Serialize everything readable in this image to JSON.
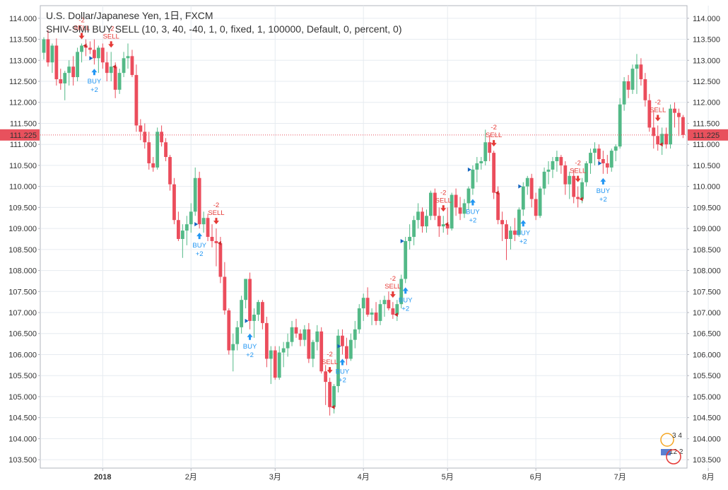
{
  "header": {
    "title": "U.S. Dollar/Japanese Yen, 1日, FXCM",
    "indicator": "SHIV-SMI BUY SELL (10, 3, 40, -40, 1, 0, fixed, 1, 100000, Default, 0, percent, 0)"
  },
  "price_marker": {
    "label": "111.225",
    "color": "#e8515d"
  },
  "colors": {
    "up": "#53b987",
    "down": "#eb4d5c",
    "buy": "#2196f3",
    "sell": "#e53935",
    "grid": "#e6ebf0"
  },
  "widget": {
    "icon": "chart-sharing-widget-icon",
    "label_top": "3 4",
    "label_bottom": "12 2"
  },
  "chart_data": {
    "type": "candlestick",
    "title": "U.S. Dollar/Japanese Yen, 1日, FXCM",
    "ylim": [
      103.3,
      114.3
    ],
    "y_ticks": [
      "114.000",
      "113.500",
      "113.000",
      "112.500",
      "112.000",
      "111.500",
      "111.000",
      "110.500",
      "110.000",
      "109.500",
      "109.000",
      "108.500",
      "108.000",
      "107.500",
      "107.000",
      "106.500",
      "106.000",
      "105.500",
      "105.000",
      "104.500",
      "104.000",
      "103.500"
    ],
    "x_ticks": [
      {
        "i": 14,
        "label": "2018"
      },
      {
        "i": 35,
        "label": "2月"
      },
      {
        "i": 55,
        "label": "3月"
      },
      {
        "i": 76,
        "label": "4月"
      },
      {
        "i": 96,
        "label": "5月"
      },
      {
        "i": 117,
        "label": "6月"
      },
      {
        "i": 137,
        "label": "7月"
      },
      {
        "i": 158,
        "label": "8月"
      }
    ],
    "grid": true,
    "last_price": 111.225,
    "candles": [
      [
        113.18,
        113.55,
        113.02,
        113.5
      ],
      [
        113.5,
        113.72,
        112.85,
        112.95
      ],
      [
        112.95,
        113.4,
        112.7,
        113.35
      ],
      [
        113.35,
        113.52,
        112.4,
        112.55
      ],
      [
        112.55,
        112.8,
        112.3,
        112.45
      ],
      [
        112.45,
        112.75,
        112.05,
        112.7
      ],
      [
        112.7,
        113.0,
        112.4,
        112.85
      ],
      [
        112.85,
        113.1,
        112.4,
        112.6
      ],
      [
        112.6,
        113.3,
        112.5,
        113.2
      ],
      [
        113.2,
        113.4,
        112.95,
        113.35
      ],
      [
        113.35,
        113.5,
        113.1,
        113.3
      ],
      [
        113.3,
        113.45,
        113.15,
        113.25
      ],
      [
        113.25,
        113.5,
        112.9,
        113.05
      ],
      [
        113.05,
        113.35,
        112.7,
        113.3
      ],
      [
        113.3,
        113.4,
        112.8,
        112.95
      ],
      [
        112.95,
        113.2,
        112.5,
        112.7
      ],
      [
        112.7,
        113.2,
        112.5,
        112.85
      ],
      [
        112.85,
        112.95,
        112.1,
        112.3
      ],
      [
        112.3,
        112.8,
        112.2,
        112.7
      ],
      [
        112.7,
        113.2,
        112.6,
        113.05
      ],
      [
        113.05,
        113.4,
        112.8,
        113.1
      ],
      [
        113.1,
        113.25,
        112.6,
        112.65
      ],
      [
        112.65,
        112.9,
        111.3,
        111.45
      ],
      [
        111.45,
        111.6,
        111.1,
        111.3
      ],
      [
        111.3,
        111.5,
        110.9,
        111.05
      ],
      [
        111.05,
        111.3,
        110.4,
        110.55
      ],
      [
        110.55,
        110.7,
        110.35,
        110.45
      ],
      [
        110.45,
        111.4,
        110.4,
        111.3
      ],
      [
        111.3,
        111.45,
        110.95,
        111.05
      ],
      [
        111.05,
        111.15,
        110.6,
        110.7
      ],
      [
        110.7,
        110.75,
        109.9,
        110.05
      ],
      [
        110.05,
        110.2,
        109.1,
        109.2
      ],
      [
        109.2,
        109.4,
        108.7,
        108.75
      ],
      [
        108.75,
        109.1,
        108.3,
        108.95
      ],
      [
        108.95,
        109.3,
        108.6,
        109.1
      ],
      [
        109.1,
        109.6,
        108.9,
        109.4
      ],
      [
        109.4,
        110.45,
        109.3,
        110.2
      ],
      [
        110.2,
        110.35,
        109.0,
        109.1
      ],
      [
        109.1,
        109.4,
        108.9,
        109.25
      ],
      [
        109.25,
        109.35,
        108.7,
        108.8
      ],
      [
        108.8,
        109.1,
        108.55,
        108.7
      ],
      [
        108.7,
        109.0,
        108.1,
        108.65
      ],
      [
        108.65,
        108.8,
        107.7,
        107.85
      ],
      [
        107.85,
        108.2,
        106.95,
        107.05
      ],
      [
        107.05,
        107.1,
        106.0,
        106.1
      ],
      [
        106.1,
        106.5,
        105.6,
        106.25
      ],
      [
        106.25,
        106.8,
        106.1,
        106.65
      ],
      [
        106.65,
        107.4,
        106.5,
        107.3
      ],
      [
        107.3,
        107.8,
        107.1,
        107.8
      ],
      [
        107.8,
        107.95,
        106.6,
        106.8
      ],
      [
        106.8,
        107.1,
        106.4,
        106.95
      ],
      [
        106.95,
        107.3,
        106.8,
        107.25
      ],
      [
        107.25,
        107.3,
        106.6,
        106.75
      ],
      [
        106.75,
        106.9,
        105.7,
        105.9
      ],
      [
        105.9,
        106.2,
        105.3,
        106.1
      ],
      [
        106.1,
        106.2,
        105.4,
        105.45
      ],
      [
        105.45,
        106.2,
        105.4,
        106.05
      ],
      [
        106.05,
        106.3,
        105.7,
        106.15
      ],
      [
        106.15,
        106.5,
        105.95,
        106.3
      ],
      [
        106.3,
        106.8,
        106.2,
        106.65
      ],
      [
        106.65,
        106.85,
        106.4,
        106.5
      ],
      [
        106.5,
        106.6,
        106.2,
        106.35
      ],
      [
        106.35,
        106.7,
        106.2,
        106.6
      ],
      [
        106.6,
        106.75,
        105.8,
        105.9
      ],
      [
        105.9,
        106.35,
        105.7,
        106.3
      ],
      [
        106.3,
        106.7,
        106.1,
        106.55
      ],
      [
        106.55,
        106.65,
        105.55,
        105.6
      ],
      [
        105.6,
        105.75,
        104.8,
        105.35
      ],
      [
        105.35,
        105.45,
        104.55,
        104.75
      ],
      [
        104.75,
        105.3,
        104.6,
        105.25
      ],
      [
        105.25,
        106.6,
        105.1,
        106.45
      ],
      [
        106.45,
        106.6,
        106.0,
        106.2
      ],
      [
        106.2,
        106.4,
        105.75,
        105.9
      ],
      [
        105.9,
        106.5,
        105.85,
        106.35
      ],
      [
        106.35,
        106.8,
        106.15,
        106.6
      ],
      [
        106.6,
        107.2,
        106.5,
        107.1
      ],
      [
        107.1,
        107.45,
        106.8,
        107.35
      ],
      [
        107.35,
        107.6,
        106.9,
        106.95
      ],
      [
        106.95,
        107.1,
        106.7,
        107.0
      ],
      [
        107.0,
        107.25,
        106.7,
        106.8
      ],
      [
        106.8,
        107.3,
        106.7,
        107.2
      ],
      [
        107.2,
        107.4,
        106.9,
        107.3
      ],
      [
        107.3,
        107.5,
        107.05,
        107.1
      ],
      [
        107.1,
        107.25,
        106.85,
        106.95
      ],
      [
        106.95,
        107.3,
        106.8,
        107.2
      ],
      [
        107.2,
        107.9,
        107.1,
        107.8
      ],
      [
        107.8,
        108.8,
        107.7,
        108.7
      ],
      [
        108.7,
        109.1,
        108.5,
        108.8
      ],
      [
        108.8,
        109.3,
        108.6,
        109.2
      ],
      [
        109.2,
        109.6,
        109.0,
        109.4
      ],
      [
        109.4,
        109.5,
        108.9,
        109.05
      ],
      [
        109.05,
        109.45,
        108.9,
        109.3
      ],
      [
        109.3,
        109.9,
        109.2,
        109.85
      ],
      [
        109.85,
        109.95,
        109.2,
        109.3
      ],
      [
        109.3,
        109.5,
        108.8,
        109.05
      ],
      [
        109.05,
        109.3,
        108.9,
        109.1
      ],
      [
        109.1,
        109.5,
        108.85,
        109.0
      ],
      [
        109.0,
        109.85,
        108.95,
        109.8
      ],
      [
        109.8,
        109.95,
        109.3,
        109.5
      ],
      [
        109.5,
        109.75,
        109.2,
        109.35
      ],
      [
        109.35,
        109.7,
        109.25,
        109.6
      ],
      [
        109.6,
        110.0,
        109.45,
        109.95
      ],
      [
        109.95,
        110.5,
        109.8,
        110.4
      ],
      [
        110.4,
        110.7,
        110.1,
        110.55
      ],
      [
        110.55,
        110.7,
        110.4,
        110.6
      ],
      [
        110.6,
        111.35,
        110.5,
        111.05
      ],
      [
        111.05,
        111.2,
        110.6,
        110.8
      ],
      [
        110.8,
        110.85,
        109.7,
        109.85
      ],
      [
        109.85,
        110.0,
        109.1,
        109.2
      ],
      [
        109.2,
        109.4,
        108.7,
        109.1
      ],
      [
        109.1,
        109.2,
        108.25,
        108.75
      ],
      [
        108.75,
        109.05,
        108.5,
        108.95
      ],
      [
        108.95,
        109.25,
        108.7,
        108.85
      ],
      [
        108.85,
        109.5,
        108.8,
        109.45
      ],
      [
        109.45,
        110.1,
        109.3,
        110.0
      ],
      [
        110.0,
        110.25,
        109.8,
        110.2
      ],
      [
        110.2,
        110.3,
        109.5,
        109.7
      ],
      [
        109.7,
        109.85,
        109.2,
        109.3
      ],
      [
        109.3,
        110.0,
        109.25,
        109.95
      ],
      [
        109.95,
        110.45,
        109.8,
        110.35
      ],
      [
        110.35,
        110.6,
        110.05,
        110.4
      ],
      [
        110.4,
        110.7,
        110.2,
        110.6
      ],
      [
        110.6,
        110.85,
        110.35,
        110.7
      ],
      [
        110.7,
        110.75,
        110.3,
        110.5
      ],
      [
        110.5,
        110.6,
        109.8,
        110.05
      ],
      [
        110.05,
        110.35,
        109.7,
        110.25
      ],
      [
        110.25,
        110.4,
        109.6,
        109.75
      ],
      [
        109.75,
        110.0,
        109.5,
        109.7
      ],
      [
        109.7,
        110.2,
        109.6,
        110.1
      ],
      [
        110.1,
        110.6,
        110.0,
        110.55
      ],
      [
        110.55,
        110.9,
        110.3,
        110.8
      ],
      [
        110.8,
        111.05,
        110.5,
        110.9
      ],
      [
        110.9,
        111.0,
        110.55,
        110.65
      ],
      [
        110.65,
        110.85,
        110.3,
        110.55
      ],
      [
        110.55,
        110.75,
        110.3,
        110.45
      ],
      [
        110.45,
        110.9,
        110.35,
        110.85
      ],
      [
        110.85,
        111.0,
        110.6,
        110.95
      ],
      [
        110.95,
        112.1,
        110.9,
        111.95
      ],
      [
        111.95,
        112.6,
        111.8,
        112.5
      ],
      [
        112.5,
        112.65,
        112.1,
        112.3
      ],
      [
        112.3,
        112.9,
        112.2,
        112.8
      ],
      [
        112.8,
        113.15,
        112.2,
        112.9
      ],
      [
        112.9,
        113.05,
        112.4,
        112.55
      ],
      [
        112.55,
        112.7,
        111.9,
        112.05
      ],
      [
        112.05,
        112.2,
        111.3,
        111.4
      ],
      [
        111.4,
        111.8,
        110.9,
        111.2
      ],
      [
        111.2,
        111.45,
        110.85,
        111.0
      ],
      [
        111.0,
        111.4,
        110.75,
        111.25
      ],
      [
        111.25,
        111.4,
        110.9,
        111.0
      ],
      [
        111.0,
        111.95,
        110.9,
        111.85
      ],
      [
        111.85,
        112.0,
        111.4,
        111.75
      ],
      [
        111.75,
        111.85,
        111.2,
        111.65
      ],
      [
        111.65,
        111.7,
        111.15,
        111.225
      ]
    ],
    "signals": [
      {
        "i": 9,
        "type": "sell",
        "change": "-2"
      },
      {
        "i": 12,
        "type": "buy",
        "change": "+2"
      },
      {
        "i": 16,
        "type": "sell",
        "change": "-2"
      },
      {
        "i": 37,
        "type": "buy",
        "change": "+2"
      },
      {
        "i": 41,
        "type": "sell",
        "change": "-2"
      },
      {
        "i": 49,
        "type": "buy",
        "change": "+2"
      },
      {
        "i": 68,
        "type": "sell",
        "change": "-2"
      },
      {
        "i": 71,
        "type": "buy",
        "change": "+2"
      },
      {
        "i": 83,
        "type": "sell",
        "change": "-2"
      },
      {
        "i": 86,
        "type": "buy",
        "change": "+2"
      },
      {
        "i": 95,
        "type": "sell",
        "change": "-2"
      },
      {
        "i": 102,
        "type": "buy",
        "change": "+2"
      },
      {
        "i": 107,
        "type": "sell",
        "change": "-2"
      },
      {
        "i": 114,
        "type": "buy",
        "change": "+2"
      },
      {
        "i": 127,
        "type": "sell",
        "change": "-2"
      },
      {
        "i": 133,
        "type": "buy",
        "change": "+2"
      },
      {
        "i": 146,
        "type": "sell",
        "change": "-2"
      }
    ],
    "signal_labels": {
      "buy": "BUY",
      "sell": "SELL"
    }
  }
}
